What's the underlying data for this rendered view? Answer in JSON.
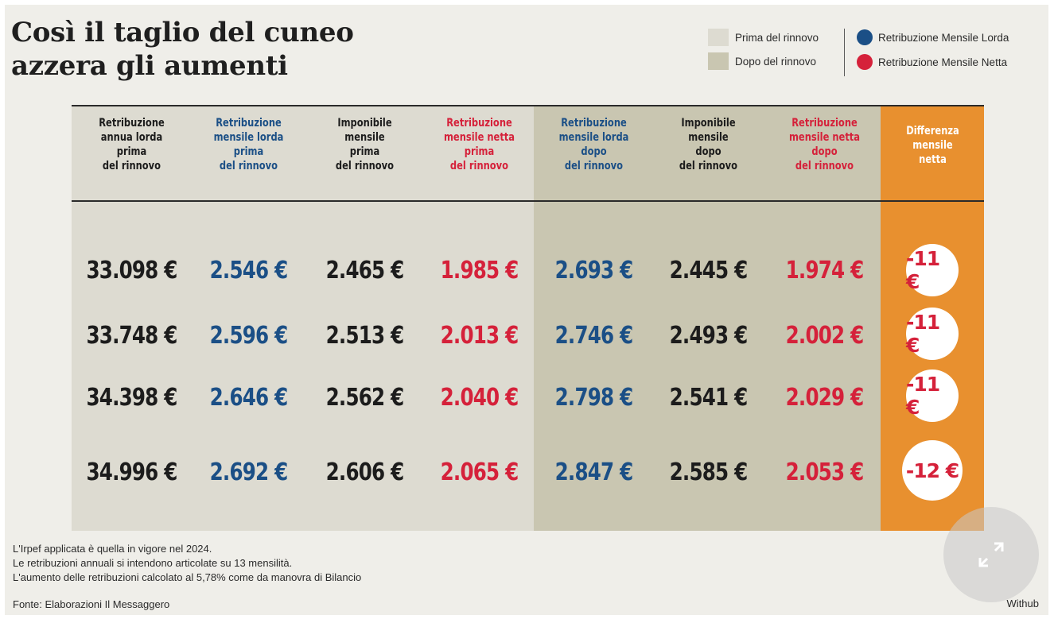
{
  "title_line1": "Così il taglio del cuneo",
  "title_line2": "azzera gli aumenti",
  "legend": {
    "prima_label": "Prima del rinnovo",
    "dopo_label": "Dopo del rinnovo",
    "lorda_label": "Retribuzione Mensile Lorda",
    "netta_label": "Retribuzione Mensile Netta",
    "colors": {
      "prima": "#dddbd1",
      "dopo": "#c9c6b1",
      "lorda": "#1b4f86",
      "netta": "#d5213a",
      "diff": "#e8902f"
    }
  },
  "chart_data": {
    "type": "table",
    "columns": [
      {
        "header": [
          "Retribuzione",
          "annua lorda",
          "prima",
          "del rinnovo"
        ],
        "period": "prima",
        "color": "black",
        "values": [
          "33.098 €",
          "33.748 €",
          "34.398 €",
          "34.996 €"
        ]
      },
      {
        "header": [
          "Retribuzione",
          "mensile lorda",
          "prima",
          "del rinnovo"
        ],
        "period": "prima",
        "color": "blue",
        "values": [
          "2.546 €",
          "2.596 €",
          "2.646 €",
          "2.692 €"
        ]
      },
      {
        "header": [
          "Imponibile",
          "mensile",
          "prima",
          "del rinnovo"
        ],
        "period": "prima",
        "color": "black",
        "values": [
          "2.465 €",
          "2.513 €",
          "2.562 €",
          "2.606 €"
        ]
      },
      {
        "header": [
          "Retribuzione",
          "mensile netta",
          "prima",
          "del rinnovo"
        ],
        "period": "prima",
        "color": "red",
        "values": [
          "1.985 €",
          "2.013 €",
          "2.040 €",
          "2.065 €"
        ]
      },
      {
        "header": [
          "Retribuzione",
          "mensile lorda",
          "dopo",
          "del rinnovo"
        ],
        "period": "dopo",
        "color": "blue",
        "values": [
          "2.693 €",
          "2.746 €",
          "2.798 €",
          "2.847 €"
        ]
      },
      {
        "header": [
          "Imponibile",
          "mensile",
          "dopo",
          "del rinnovo"
        ],
        "period": "dopo",
        "color": "black",
        "values": [
          "2.445 €",
          "2.493 €",
          "2.541 €",
          "2.585 €"
        ]
      },
      {
        "header": [
          "Retribuzione",
          "mensile netta",
          "dopo",
          "del rinnovo"
        ],
        "period": "dopo",
        "color": "red",
        "values": [
          "1.974 €",
          "2.002 €",
          "2.029 €",
          "2.053 €"
        ]
      }
    ],
    "difference_column": {
      "header": [
        "Differenza",
        "mensile",
        "netta"
      ],
      "values": [
        "-11 €",
        "-11 €",
        "-11 €",
        "-12 €"
      ]
    }
  },
  "notes": [
    "L'Irpef applicata è quella in vigore nel 2024.",
    "Le retribuzioni annuali si intendono articolate su 13 mensilità.",
    "L'aumento delle retribuzioni calcolato al 5,78% come da manovra di Bilancio"
  ],
  "source": "Fonte: Elaborazioni Il Messaggero",
  "brand": "Withub",
  "expand_icon": "expand-arrows-icon"
}
